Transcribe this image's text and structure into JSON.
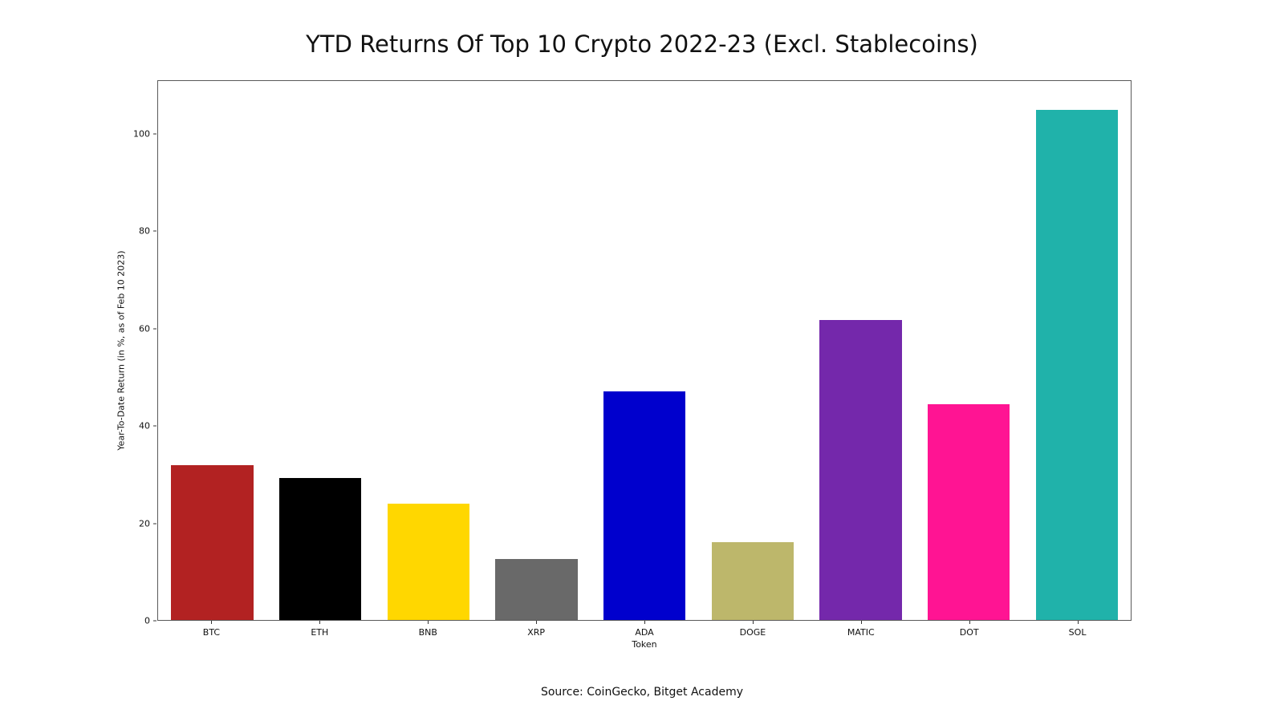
{
  "source_note": "Source: CoinGecko, Bitget Academy",
  "chart_data": {
    "type": "bar",
    "title": "YTD Returns Of Top 10 Crypto 2022-23 (Excl. Stablecoins)",
    "xlabel": "Token",
    "ylabel": "Year-To-Date Return (in %, as of Feb 10 2023)",
    "categories": [
      "BTC",
      "ETH",
      "BNB",
      "XRP",
      "ADA",
      "DOGE",
      "MATIC",
      "DOT",
      "SOL"
    ],
    "values": [
      31.9,
      29.2,
      23.9,
      12.6,
      47.0,
      16.0,
      61.8,
      44.4,
      105.0
    ],
    "bar_colors": [
      "#b22222",
      "#000000",
      "#ffd700",
      "#696969",
      "#0000cd",
      "#bdb76b",
      "#7428ab",
      "#ff1493",
      "#20b2aa"
    ],
    "ylim": [
      0,
      111
    ],
    "yticks": [
      0,
      20,
      40,
      60,
      80,
      100
    ],
    "grid": false,
    "legend": false
  }
}
